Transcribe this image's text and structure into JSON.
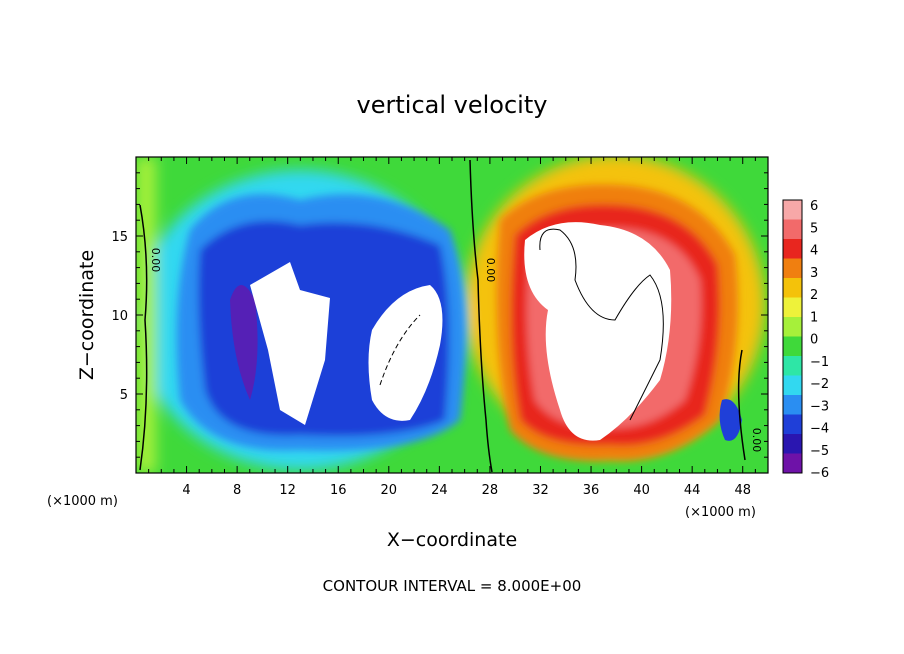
{
  "chart_data": {
    "type": "heatmap",
    "title": "vertical velocity",
    "xlabel": "X−coordinate",
    "ylabel": "Z−coordinate",
    "x_unit_left": "(×1000 m)",
    "x_unit_right": "(×1000 m)",
    "footer": "CONTOUR INTERVAL = 8.000E+00",
    "xlim": [
      0,
      50
    ],
    "ylim": [
      0,
      20
    ],
    "x_ticks": [
      4,
      8,
      12,
      16,
      20,
      24,
      28,
      32,
      36,
      40,
      44,
      48
    ],
    "x_tick_labels": [
      "4",
      "8",
      "12",
      "16",
      "20",
      "24",
      "28",
      "32",
      "36",
      "40",
      "44",
      "48"
    ],
    "y_ticks": [
      5,
      10,
      15
    ],
    "y_tick_labels": [
      "5",
      "10",
      "15"
    ],
    "colorbar": {
      "min": -6,
      "max": 6,
      "tick_labels": [
        "6",
        "5",
        "4",
        "3",
        "2",
        "1",
        "0",
        "−1",
        "−2",
        "−3",
        "−4",
        "−5",
        "−6"
      ],
      "colors": [
        "#f7a8a8",
        "#f26a6a",
        "#e8261f",
        "#f07f10",
        "#f4c20a",
        "#eef23a",
        "#a6f03a",
        "#3fd93a",
        "#2ee6a6",
        "#32d8f0",
        "#2a8ef2",
        "#1f3fd8",
        "#2a16b0",
        "#6e12a8"
      ]
    },
    "contour_labels": [
      "0.00",
      "0.00",
      "0.00"
    ],
    "grid": false
  }
}
